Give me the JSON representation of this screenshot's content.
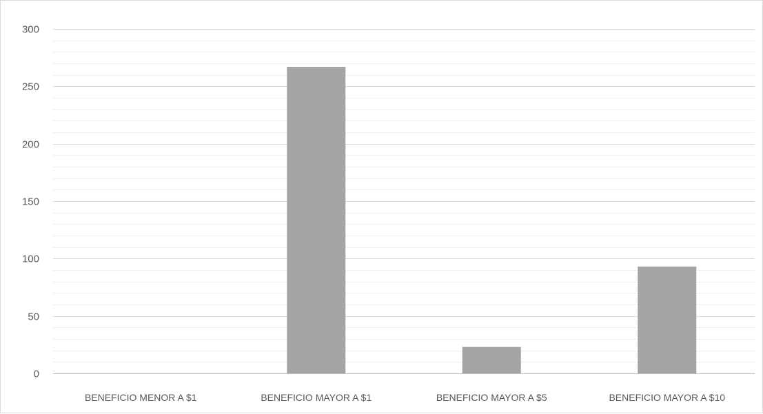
{
  "chart_data": {
    "type": "bar",
    "categories": [
      "BENEFICIO MENOR A $1",
      "BENEFICIO MAYOR A $1",
      "BENEFICIO MAYOR A $5",
      "BENEFICIO MAYOR A $10"
    ],
    "values": [
      0,
      267,
      23,
      93
    ],
    "title": "",
    "xlabel": "",
    "ylabel": "",
    "ylim": [
      0,
      300
    ],
    "yticks": [
      "0",
      "50",
      "100",
      "150",
      "200",
      "250",
      "300"
    ],
    "major_step": 50,
    "minor_step": 10,
    "grid": true,
    "bar_color": "#a5a5a5",
    "major_grid_color": "#d9d9d9",
    "minor_grid_color": "#efefef",
    "legend": "none"
  }
}
